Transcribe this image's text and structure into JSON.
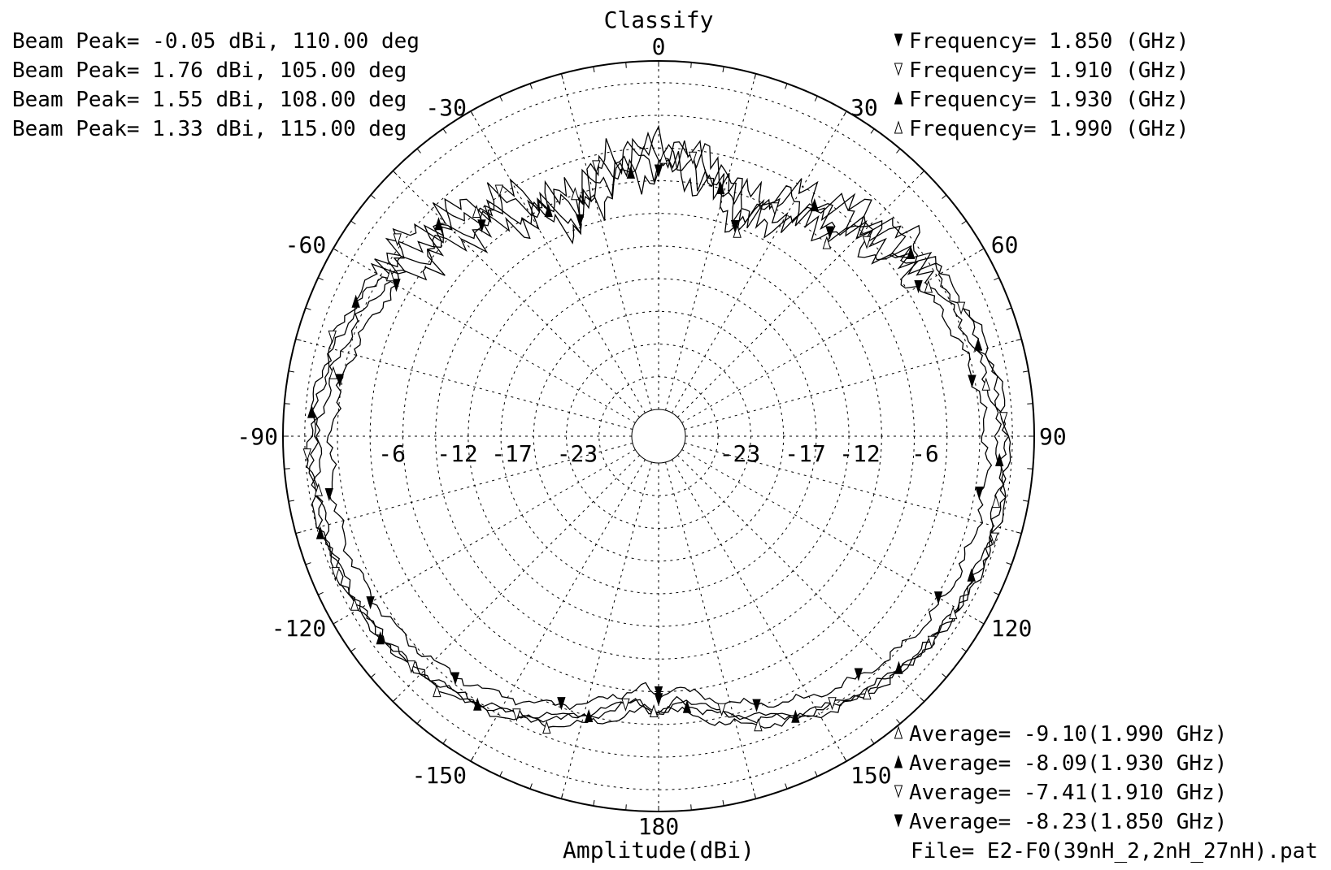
{
  "chart_data": {
    "type": "polar",
    "title": "Classify",
    "radial_label": "Amplitude(dBi)",
    "angle_ticks": [
      {
        "angle": 0,
        "label": "0"
      },
      {
        "angle": 30,
        "label": "30"
      },
      {
        "angle": 60,
        "label": "60"
      },
      {
        "angle": 90,
        "label": "90"
      },
      {
        "angle": 120,
        "label": "120"
      },
      {
        "angle": 150,
        "label": "150"
      },
      {
        "angle": 180,
        "label": "180"
      },
      {
        "angle": -150,
        "label": "-150"
      },
      {
        "angle": -120,
        "label": "-120"
      },
      {
        "angle": -90,
        "label": "-90"
      },
      {
        "angle": -60,
        "label": "-60"
      },
      {
        "angle": -30,
        "label": "-30"
      }
    ],
    "angular_grid_step_deg": 15,
    "radial_ticks": [
      {
        "value": -23,
        "label": "-23"
      },
      {
        "value": -17,
        "label": "-17"
      },
      {
        "value": -12,
        "label": "-12"
      },
      {
        "value": -6,
        "label": "-6"
      }
    ],
    "radial_range": [
      -28,
      4
    ],
    "grid": true,
    "series": [
      {
        "frequency_text": "Frequency= 1.850 (GHz)",
        "beam_peak_text": "Beam Peak= -0.05 dBi, 110.00 deg",
        "average_text": "Average= -8.23(1.850 GHz)",
        "marker": "filled-down",
        "peak_dbi": -0.05,
        "peak_deg": 110,
        "average_dbi": -8.23
      },
      {
        "frequency_text": "Frequency= 1.910 (GHz)",
        "beam_peak_text": "Beam Peak= 1.76 dBi, 105.00 deg",
        "average_text": "Average= -7.41(1.910 GHz)",
        "marker": "open-down",
        "peak_dbi": 1.76,
        "peak_deg": 105,
        "average_dbi": -7.41
      },
      {
        "frequency_text": "Frequency= 1.930 (GHz)",
        "beam_peak_text": "Beam Peak= 1.55 dBi, 108.00 deg",
        "average_text": "Average= -8.09(1.930 GHz)",
        "marker": "filled-up",
        "peak_dbi": 1.55,
        "peak_deg": 108,
        "average_dbi": -8.09
      },
      {
        "frequency_text": "Frequency= 1.990 (GHz)",
        "beam_peak_text": "Beam Peak= 1.33 dBi, 115.00 deg",
        "average_text": "Average= -9.10(1.990 GHz)",
        "marker": "open-up",
        "peak_dbi": 1.33,
        "peak_deg": 115,
        "average_dbi": -9.1
      }
    ],
    "beam_peak_lines": [
      "Beam Peak= -0.05 dBi, 110.00 deg",
      "Beam Peak= 1.76 dBi, 105.00 deg",
      "Beam Peak= 1.55 dBi, 108.00 deg",
      "Beam Peak= 1.33 dBi, 115.00 deg"
    ],
    "frequency_lines": [
      {
        "marker": "filled-down",
        "text": "Frequency= 1.850 (GHz)"
      },
      {
        "marker": "open-down",
        "text": "Frequency= 1.910 (GHz)"
      },
      {
        "marker": "filled-up",
        "text": "Frequency= 1.930 (GHz)"
      },
      {
        "marker": "open-up",
        "text": "Frequency= 1.990 (GHz)"
      }
    ],
    "average_lines": [
      {
        "marker": "open-up",
        "text": "Average= -9.10(1.990 GHz)"
      },
      {
        "marker": "filled-up",
        "text": "Average= -8.09(1.930 GHz)"
      },
      {
        "marker": "open-down",
        "text": "Average= -7.41(1.910 GHz)"
      },
      {
        "marker": "filled-down",
        "text": "Average= -8.23(1.850 GHz)"
      }
    ],
    "file_text": "File= E2-F0(39nH_2,2nH_27nH).pat"
  }
}
